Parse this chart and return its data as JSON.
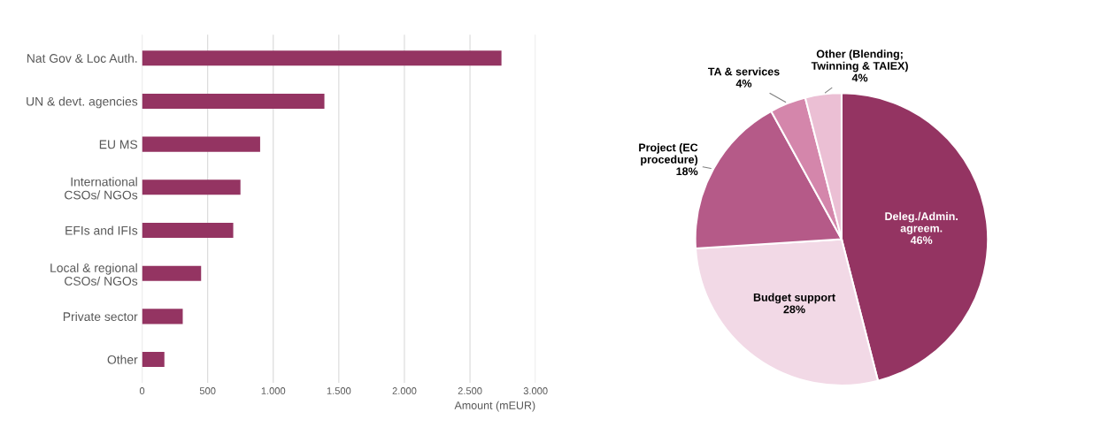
{
  "chart_data": [
    {
      "type": "bar",
      "orientation": "horizontal",
      "xlabel": "Amount (mEUR)",
      "categories": [
        "Nat Gov & Loc Auth.",
        "UN & devt. agencies",
        "EU MS",
        "International\nCSOs/ NGOs",
        "EFIs and IFIs",
        "Local & regional\nCSOs/ NGOs",
        "Private sector",
        "Other"
      ],
      "values": [
        2740,
        1390,
        900,
        750,
        695,
        450,
        310,
        170
      ],
      "color": "#943462",
      "xlim": [
        0,
        3000
      ],
      "xticks": [
        0,
        500,
        {
          "value": 1000,
          "label": "1.000"
        },
        {
          "value": 1500,
          "label": "1.500"
        },
        {
          "value": 2000,
          "label": "2.000"
        },
        {
          "value": 2500,
          "label": "2.500"
        },
        {
          "value": 3000,
          "label": "3.000"
        }
      ],
      "grid": "x"
    },
    {
      "type": "pie",
      "categories": [
        "Deleg./Admin.\nagreem.",
        "Budget support",
        "Project (EC\nprocedure)",
        "TA & services",
        "Other (Blending;\nTwinning & TAIEX)"
      ],
      "values": [
        46,
        28,
        18,
        4,
        4
      ],
      "value_labels": [
        "46%",
        "28%",
        "18%",
        "4%",
        "4%"
      ],
      "colors": [
        "#943462",
        "#f2d9e6",
        "#b55a88",
        "#d486ab",
        "#ebbfd4"
      ]
    }
  ]
}
